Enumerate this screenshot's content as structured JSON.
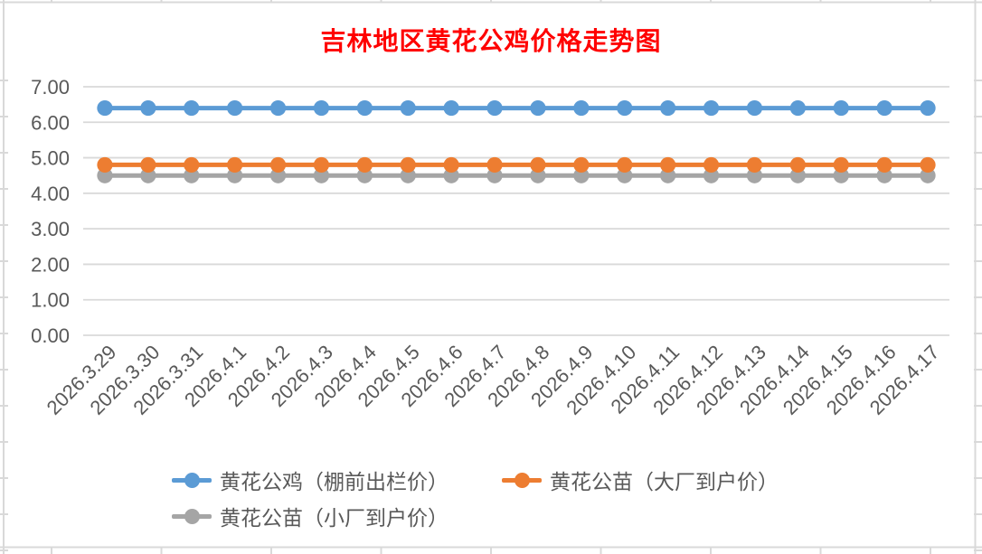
{
  "chart_data": {
    "type": "line",
    "title": "吉林地区黄花公鸡价格走势图",
    "title_color": "#FF0000",
    "categories": [
      "2026.3.29",
      "2026.3.30",
      "2026.3.31",
      "2026.4.1",
      "2026.4.2",
      "2026.4.3",
      "2026.4.4",
      "2026.4.5",
      "2026.4.6",
      "2026.4.7",
      "2026.4.8",
      "2026.4.9",
      "2026.4.10",
      "2026.4.11",
      "2026.4.12",
      "2026.4.13",
      "2026.4.14",
      "2026.4.15",
      "2026.4.16",
      "2026.4.17"
    ],
    "series": [
      {
        "name": "黄花公鸡（棚前出栏价）",
        "color": "#5B9BD5",
        "values": [
          6.4,
          6.4,
          6.4,
          6.4,
          6.4,
          6.4,
          6.4,
          6.4,
          6.4,
          6.4,
          6.4,
          6.4,
          6.4,
          6.4,
          6.4,
          6.4,
          6.4,
          6.4,
          6.4,
          6.4
        ]
      },
      {
        "name": "黄花公苗（大厂到户价）",
        "color": "#ED7D31",
        "values": [
          4.8,
          4.8,
          4.8,
          4.8,
          4.8,
          4.8,
          4.8,
          4.8,
          4.8,
          4.8,
          4.8,
          4.8,
          4.8,
          4.8,
          4.8,
          4.8,
          4.8,
          4.8,
          4.8,
          4.8
        ]
      },
      {
        "name": "黄花公苗（小厂到户价）",
        "color": "#A5A5A5",
        "values": [
          4.5,
          4.5,
          4.5,
          4.5,
          4.5,
          4.5,
          4.5,
          4.5,
          4.5,
          4.5,
          4.5,
          4.5,
          4.5,
          4.5,
          4.5,
          4.5,
          4.5,
          4.5,
          4.5,
          4.5
        ]
      }
    ],
    "ylim": [
      0,
      7
    ],
    "y_ticks": [
      "0.00",
      "1.00",
      "2.00",
      "3.00",
      "4.00",
      "5.00",
      "6.00",
      "7.00"
    ],
    "grid": true,
    "legend_position": "bottom",
    "axis_text_color": "#595959",
    "gridline_color": "#D9D9D9",
    "xlabel": "",
    "ylabel": ""
  }
}
